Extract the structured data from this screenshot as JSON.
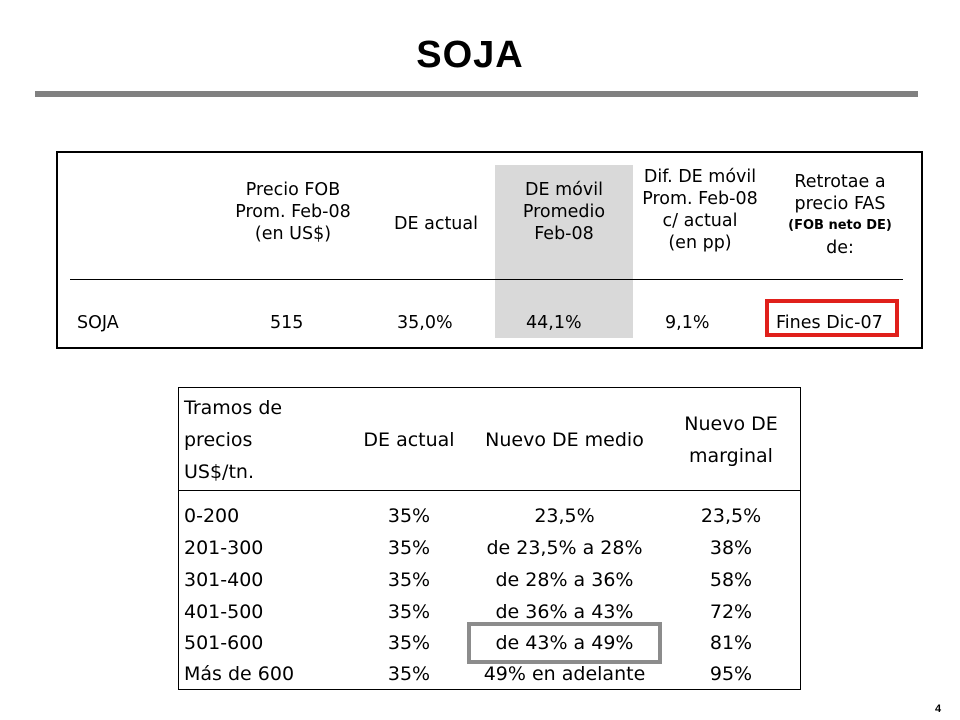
{
  "title": "SOJA",
  "page_number": "4",
  "table1": {
    "headers": [
      "",
      "Precio FOB\nProm. Feb-08\n(en US$)",
      "DE actual",
      "DE móvil\nPromedio\nFeb-08",
      "Dif. DE móvil\nProm. Feb-08\nc/ actual\n(en pp)",
      "Retrotae a\nprecio FAS"
    ],
    "header_note": "(FOB neto DE)",
    "header_last_suffix": "de:",
    "row": [
      "SOJA",
      "515",
      "35,0%",
      "44,1%",
      "9,1%",
      "Fines Dic-07"
    ]
  },
  "table2": {
    "headers": [
      "Tramos de\nprecios\nUS$/tn.",
      "DE actual",
      "Nuevo DE medio",
      "Nuevo DE\nmarginal"
    ],
    "rows": [
      [
        "0-200",
        "35%",
        "23,5%",
        "23,5%"
      ],
      [
        "201-300",
        "35%",
        "de 23,5% a 28%",
        "38%"
      ],
      [
        "301-400",
        "35%",
        "de 28% a 36%",
        "58%"
      ],
      [
        "401-500",
        "35%",
        "de 36% a 43%",
        "72%"
      ],
      [
        "501-600",
        "35%",
        "de 43% a 49%",
        "81%"
      ],
      [
        "Más de 600",
        "35%",
        "49% en adelante",
        "95%"
      ]
    ]
  },
  "colors": {
    "title_rule": "#808080",
    "highlight_column": "#d9d9d9",
    "red_box": "#e0201b",
    "grey_box": "#8c8c8c"
  }
}
